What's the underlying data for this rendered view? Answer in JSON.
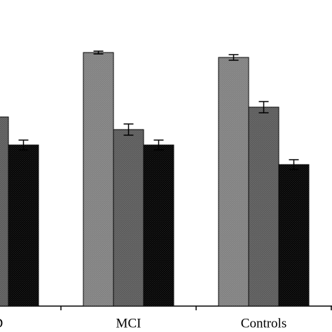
{
  "chart_data": {
    "type": "bar",
    "categories": [
      "AD",
      "MCI",
      "Controls"
    ],
    "series": [
      {
        "color": "#7f7f7f",
        "values": [
          null,
          90.5,
          88.75
        ],
        "errors": [
          null,
          0.5,
          1
        ]
      },
      {
        "color": "#595959",
        "values": [
          67.5,
          63,
          71
        ],
        "errors": [
          null,
          2,
          2
        ]
      },
      {
        "color": "#000000",
        "values": [
          57.5,
          57.5,
          50.5
        ],
        "errors": [
          1.75,
          1.75,
          1.75
        ]
      }
    ],
    "ylim": [
      0,
      109.25
    ]
  }
}
